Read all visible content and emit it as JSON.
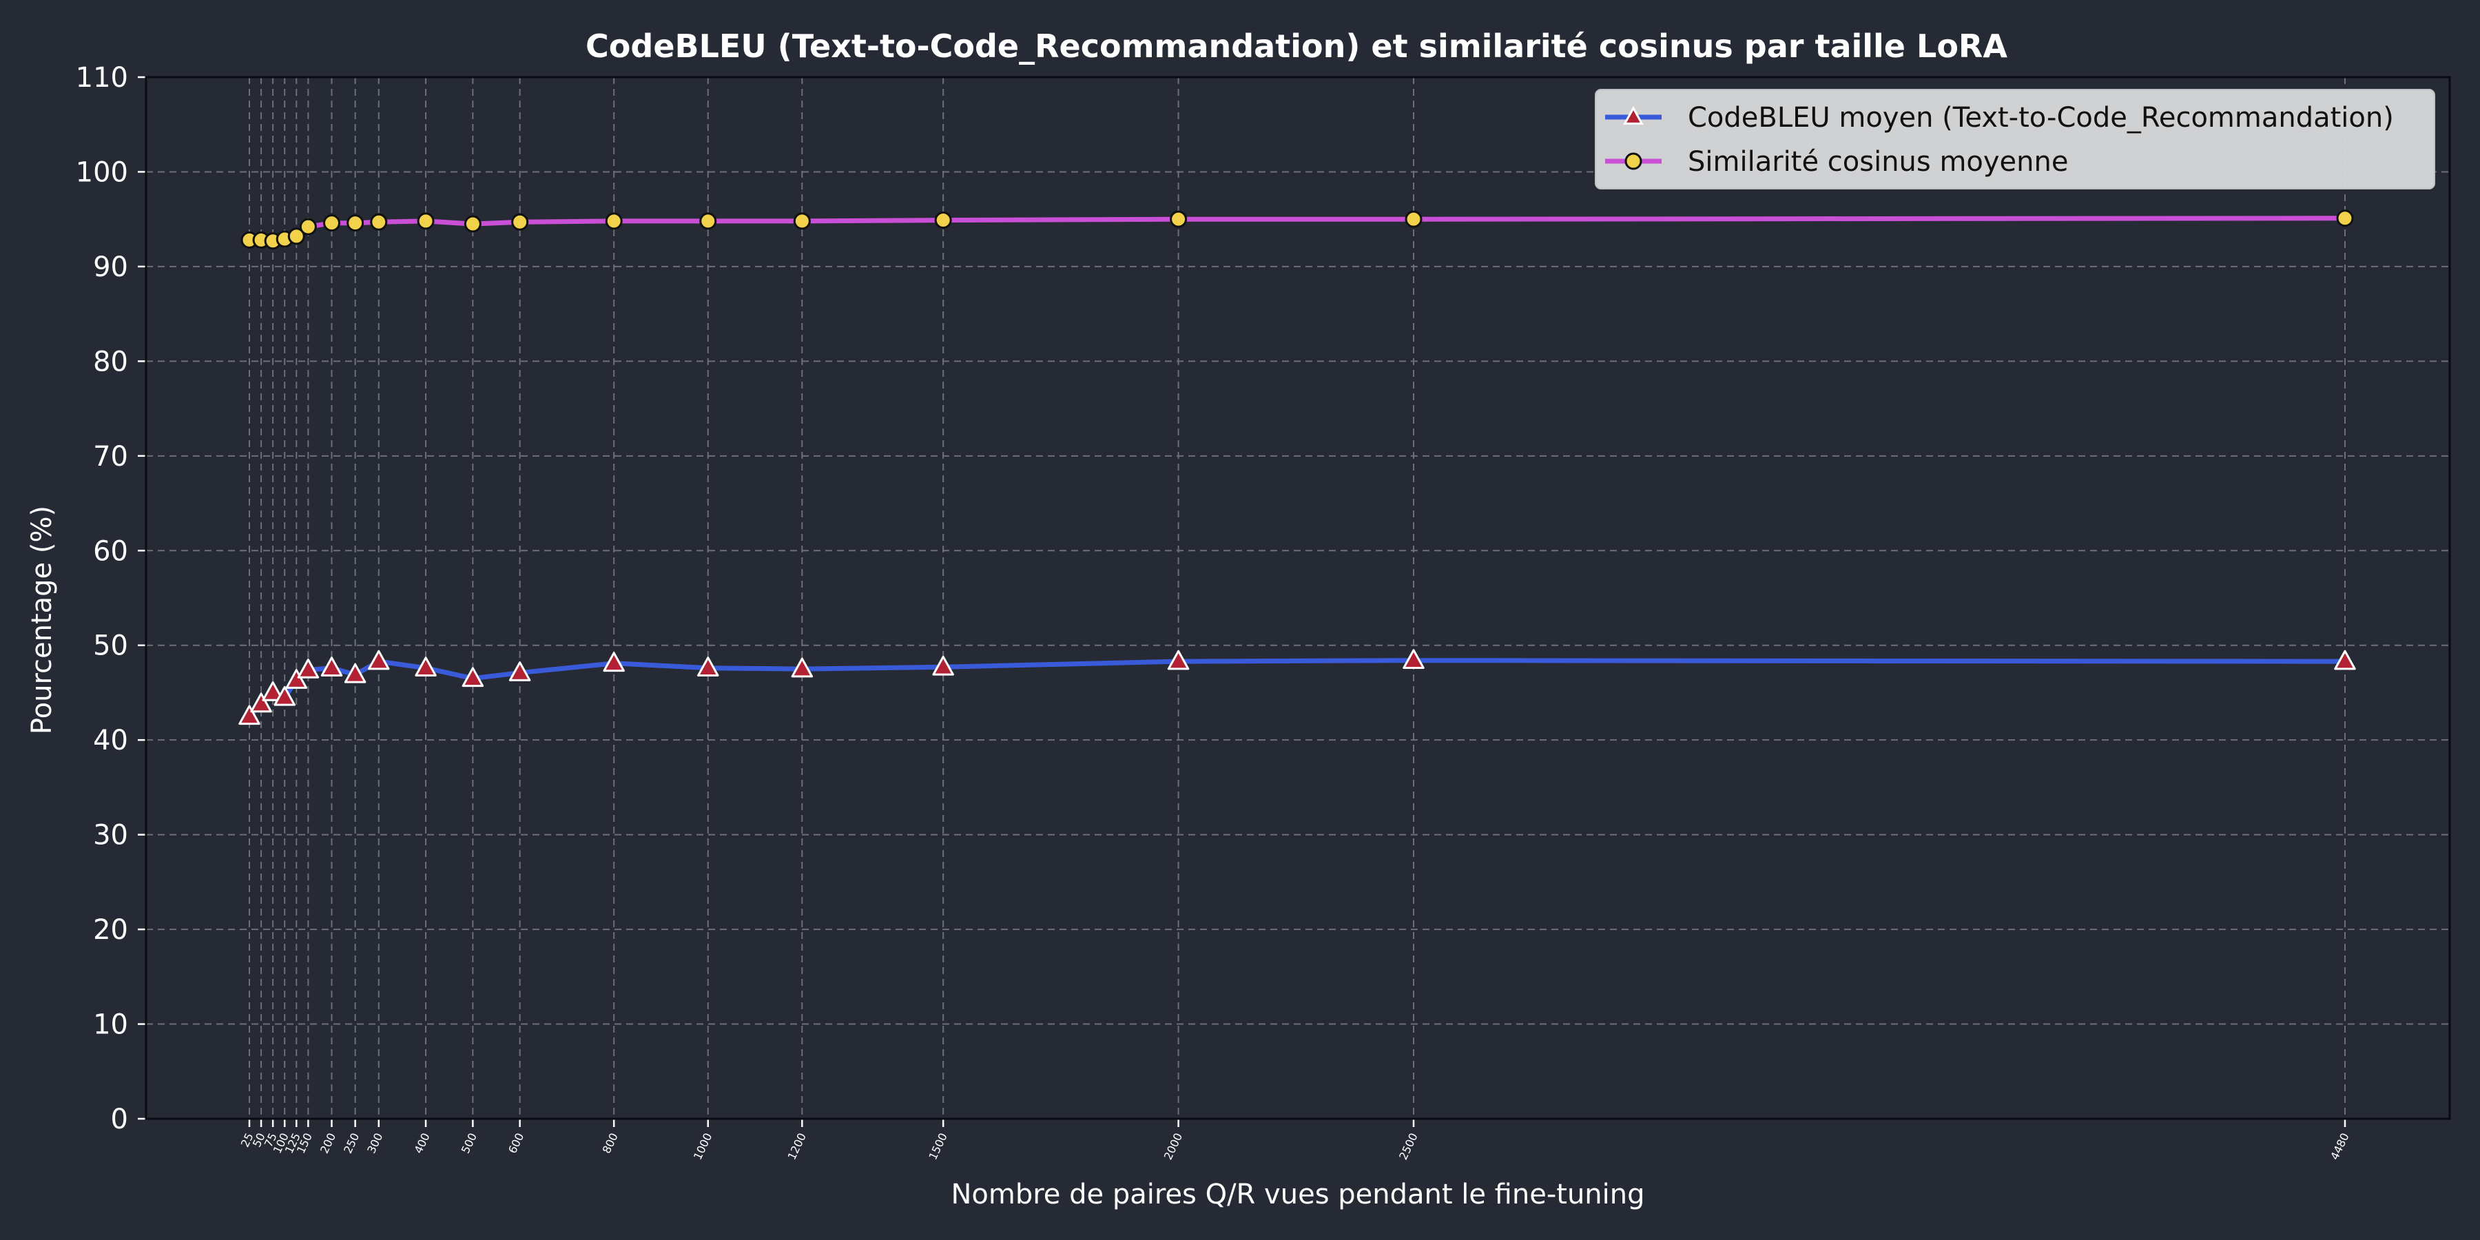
{
  "chart_data": {
    "type": "line",
    "title": "CodeBLEU (Text-to-Code_Recommandation) et similarité cosinus par taille LoRA",
    "xlabel": "Nombre de paires Q/R vues pendant le fine-tuning",
    "ylabel": "Pourcentage (%)",
    "ylim": [
      0,
      110
    ],
    "yticks": [
      0,
      10,
      20,
      30,
      40,
      50,
      60,
      70,
      80,
      90,
      100,
      110
    ],
    "x": [
      25,
      50,
      75,
      100,
      125,
      150,
      200,
      250,
      300,
      400,
      500,
      600,
      800,
      1000,
      1200,
      1500,
      2000,
      2500,
      4480
    ],
    "xtick_labels": [
      "25",
      "50",
      "75",
      "100",
      "125",
      "150",
      "200",
      "250",
      "300",
      "400",
      "500",
      "600",
      "800",
      "1000",
      "1200",
      "1500",
      "2000",
      "2500",
      "4480"
    ],
    "grid": true,
    "legend_position": "top-right",
    "series": [
      {
        "name": "CodeBLEU moyen (Text-to-Code_Recommandation)",
        "color": "#3a5bd9",
        "marker": "triangle",
        "marker_color": "#b22234",
        "values": [
          42.5,
          43.8,
          45.0,
          44.5,
          46.3,
          47.4,
          47.6,
          46.9,
          48.3,
          47.6,
          46.5,
          47.1,
          48.1,
          47.6,
          47.5,
          47.7,
          48.3,
          48.4,
          48.3
        ]
      },
      {
        "name": "Similarité cosinus moyenne",
        "color": "#c94fd6",
        "marker": "circle",
        "marker_color": "#f2d24b",
        "values": [
          92.8,
          92.8,
          92.7,
          92.9,
          93.2,
          94.2,
          94.6,
          94.6,
          94.7,
          94.8,
          94.5,
          94.7,
          94.8,
          94.8,
          94.8,
          94.9,
          95.0,
          95.0,
          95.1
        ]
      }
    ]
  }
}
